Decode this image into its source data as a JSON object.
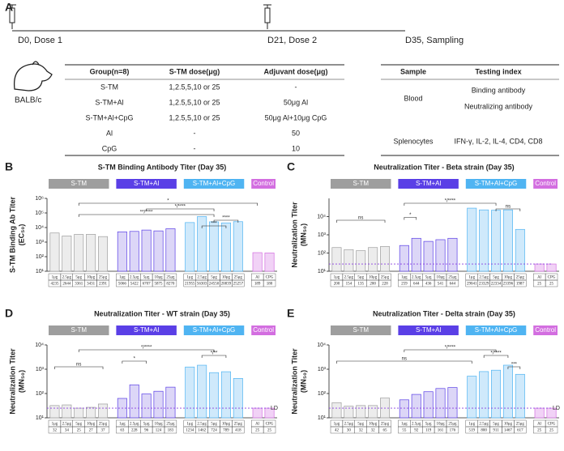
{
  "panel_a": {
    "label": "A",
    "timeline": [
      "D0, Dose 1",
      "D21, Dose 2",
      "D35, Sampling"
    ],
    "animal": "BALB/c",
    "group_table": {
      "header": [
        "Group(n=8)",
        "S-TM dose(μg)",
        "Adjuvant dose(μg)"
      ],
      "rows": [
        [
          "S-TM",
          "1,2.5,5,10 or 25",
          "-"
        ],
        [
          "S-TM+Al",
          "1,2.5,5,10 or 25",
          "50μg Al"
        ],
        [
          "S-TM+Al+CpG",
          "1,2.5,5,10 or 25",
          "50μg Al+10μg CpG"
        ],
        [
          "Al",
          "-",
          "50"
        ],
        [
          "CpG",
          "-",
          "10"
        ]
      ]
    },
    "sample_table": {
      "header": [
        "Sample",
        "Testing index"
      ],
      "rows": [
        {
          "sample": "Blood",
          "indices": [
            "Binding antibody",
            "Neutralizing antibody"
          ]
        },
        {
          "sample": "Splenocytes",
          "indices": [
            "IFN-γ, IL-2, IL-4, CD4, CD8"
          ]
        }
      ]
    }
  },
  "chart_data": [
    {
      "label": "B",
      "type": "bar",
      "title": "S-TM Binding Antibody Titer (Day 35)",
      "y_label": [
        "S-TM Binding Ab Titer",
        "(EC₅₀)"
      ],
      "log_y": true,
      "ylim": [
        10,
        1000000
      ],
      "yticks": [
        {
          "value": 10,
          "label": "10¹"
        },
        {
          "value": 100,
          "label": "10²"
        },
        {
          "value": 1000,
          "label": "10³"
        },
        {
          "value": 10000,
          "label": "10⁴"
        },
        {
          "value": 100000,
          "label": "10⁵"
        },
        {
          "value": 1000000,
          "label": "10⁶"
        }
      ],
      "series": [
        {
          "name": "S-TM",
          "color": "#9e9e9e",
          "bar_color": "#ececec",
          "categories": [
            "1μg",
            "2.5μg",
            "5μg",
            "10μg",
            "25μg"
          ],
          "values": [
            4235,
            2644,
            3361,
            3431,
            2391
          ]
        },
        {
          "name": "S-TM+Al",
          "color": "#5a3fe6",
          "bar_color": "#dcd6f7",
          "categories": [
            "1μg",
            "2.5μg",
            "5μg",
            "10μg",
            "25μg"
          ],
          "values": [
            5066,
            5422,
            6707,
            5875,
            8270
          ]
        },
        {
          "name": "S-TM+Al+CpG",
          "color": "#4fb4f2",
          "bar_color": "#cfe9fb",
          "categories": [
            "1μg",
            "2.5μg",
            "5μg",
            "10μg",
            "25μg"
          ],
          "values": [
            21955,
            56303,
            24550,
            20839,
            25257
          ]
        },
        {
          "name": "Control",
          "color": "#d36ee0",
          "bar_color": "#f1d2f6",
          "categories": [
            "Al",
            "CPG"
          ],
          "values": [
            189,
            180
          ]
        }
      ],
      "annotations": [
        "**/****",
        "*",
        "*/****",
        "***",
        "****"
      ]
    },
    {
      "label": "C",
      "type": "bar",
      "title": "Neutralization Titer - Beta strain (Day 35)",
      "y_label": [
        "Neutralization Titer",
        "(MN₅₀)"
      ],
      "log_y": true,
      "ylim": [
        10,
        100000
      ],
      "yticks": [
        {
          "value": 10,
          "label": "10¹"
        },
        {
          "value": 100,
          "label": "10²"
        },
        {
          "value": 1000,
          "label": "10³"
        },
        {
          "value": 10000,
          "label": "10⁴"
        }
      ],
      "reference_line": 25,
      "series": [
        {
          "name": "S-TM",
          "color": "#9e9e9e",
          "bar_color": "#ececec",
          "categories": [
            "1μg",
            "2.5μg",
            "5μg",
            "10μg",
            "25μg"
          ],
          "values": [
            200,
            154,
            135,
            200,
            228
          ]
        },
        {
          "name": "S-TM+Al",
          "color": "#5a3fe6",
          "bar_color": "#dcd6f7",
          "categories": [
            "1μg",
            "2.5μg",
            "5μg",
            "10μg",
            "25μg"
          ],
          "values": [
            259,
            644,
            436,
            541,
            644
          ]
        },
        {
          "name": "S-TM+Al+CpG",
          "color": "#4fb4f2",
          "bar_color": "#cfe9fb",
          "categories": [
            "1μg",
            "2.5μg",
            "5μg",
            "10μg",
            "25μg"
          ],
          "values": [
            29041,
            23329,
            22334,
            23396,
            1987
          ]
        },
        {
          "name": "Control",
          "color": "#d36ee0",
          "bar_color": "#f1d2f6",
          "categories": [
            "Al",
            "CPG"
          ],
          "values": [
            25,
            25
          ]
        }
      ],
      "annotations": [
        "ns",
        "*",
        "*/****",
        "ns"
      ]
    },
    {
      "label": "D",
      "type": "bar",
      "title": "Neutralization Titer - WT strain (Day 35)",
      "y_label": [
        "Neutralization Titer",
        "(MN₅₀)"
      ],
      "log_y": true,
      "ylim": [
        10,
        10000
      ],
      "yticks": [
        {
          "value": 10,
          "label": "10¹"
        },
        {
          "value": 100,
          "label": "10²"
        },
        {
          "value": 1000,
          "label": "10³"
        },
        {
          "value": 10000,
          "label": "10⁴"
        }
      ],
      "reference_line": 25,
      "reference_label": "LD",
      "series": [
        {
          "name": "S-TM",
          "color": "#9e9e9e",
          "bar_color": "#ececec",
          "categories": [
            "1μg",
            "2.5μg",
            "5μg",
            "10μg",
            "25μg"
          ],
          "values": [
            32,
            34,
            25,
            27,
            37
          ]
        },
        {
          "name": "S-TM+Al",
          "color": "#5a3fe6",
          "bar_color": "#dcd6f7",
          "categories": [
            "1μg",
            "2.5μg",
            "5μg",
            "10μg",
            "25μg"
          ],
          "values": [
            63,
            228,
            96,
            124,
            183
          ]
        },
        {
          "name": "S-TM+Al+CpG",
          "color": "#4fb4f2",
          "bar_color": "#cfe9fb",
          "categories": [
            "1μg",
            "2.5μg",
            "5μg",
            "10μg",
            "25μg"
          ],
          "values": [
            1234,
            1462,
            724,
            789,
            418
          ]
        },
        {
          "name": "Control",
          "color": "#d36ee0",
          "bar_color": "#f1d2f6",
          "categories": [
            "Al",
            "CPG"
          ],
          "values": [
            25,
            25
          ]
        }
      ],
      "annotations": [
        "ns",
        "*",
        "*/****",
        "*/**"
      ]
    },
    {
      "label": "E",
      "type": "bar",
      "title": "Neutralization Titer - Delta strain (Day 35)",
      "y_label": [
        "Neutralization Titer",
        "(MN₅₀)"
      ],
      "log_y": true,
      "ylim": [
        10,
        10000
      ],
      "yticks": [
        {
          "value": 10,
          "label": "10¹"
        },
        {
          "value": 100,
          "label": "10²"
        },
        {
          "value": 1000,
          "label": "10³"
        },
        {
          "value": 10000,
          "label": "10⁴"
        }
      ],
      "reference_line": 25,
      "reference_label": "LD",
      "series": [
        {
          "name": "S-TM",
          "color": "#9e9e9e",
          "bar_color": "#ececec",
          "categories": [
            "1μg",
            "2.5μg",
            "5μg",
            "10μg",
            "25μg"
          ],
          "values": [
            42,
            30,
            32,
            32,
            65
          ]
        },
        {
          "name": "S-TM+Al",
          "color": "#5a3fe6",
          "bar_color": "#dcd6f7",
          "categories": [
            "1μg",
            "2.5μg",
            "5μg",
            "10μg",
            "25μg"
          ],
          "values": [
            55,
            92,
            119,
            161,
            176
          ]
        },
        {
          "name": "S-TM+Al+CpG",
          "color": "#4fb4f2",
          "bar_color": "#cfe9fb",
          "categories": [
            "1μg",
            "2.5μg",
            "5μg",
            "10μg",
            "25μg"
          ],
          "values": [
            519,
            800,
            911,
            1467,
            617
          ]
        },
        {
          "name": "Control",
          "color": "#d36ee0",
          "bar_color": "#f1d2f6",
          "categories": [
            "Al",
            "CPG"
          ],
          "values": [
            25,
            25
          ]
        }
      ],
      "annotations": [
        "ns",
        "*/****",
        "*/****",
        "***"
      ]
    }
  ]
}
